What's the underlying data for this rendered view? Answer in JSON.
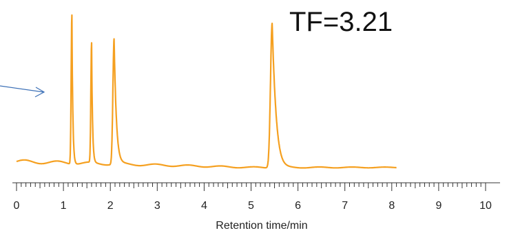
{
  "chart_data": {
    "type": "line",
    "title": "",
    "xlabel": "Retention time/min",
    "ylabel": "",
    "xlim": [
      0,
      10
    ],
    "x_tick_labels": [
      "0",
      "1",
      "2",
      "3",
      "4",
      "5",
      "6",
      "7",
      "8",
      "9",
      "10"
    ],
    "annotations": [
      "TF=3.21"
    ],
    "line_color": "#f5a020",
    "arrow_color": "#3b6fb6",
    "baseline_level": 0,
    "series": [
      {
        "peaks": [
          {
            "rt": 1.18,
            "height": 1.0
          },
          {
            "rt": 1.6,
            "height": 0.8
          },
          {
            "rt": 2.08,
            "height": 0.84
          },
          {
            "rt": 5.45,
            "height": 0.97
          }
        ]
      }
    ],
    "x_end": 8.1
  }
}
